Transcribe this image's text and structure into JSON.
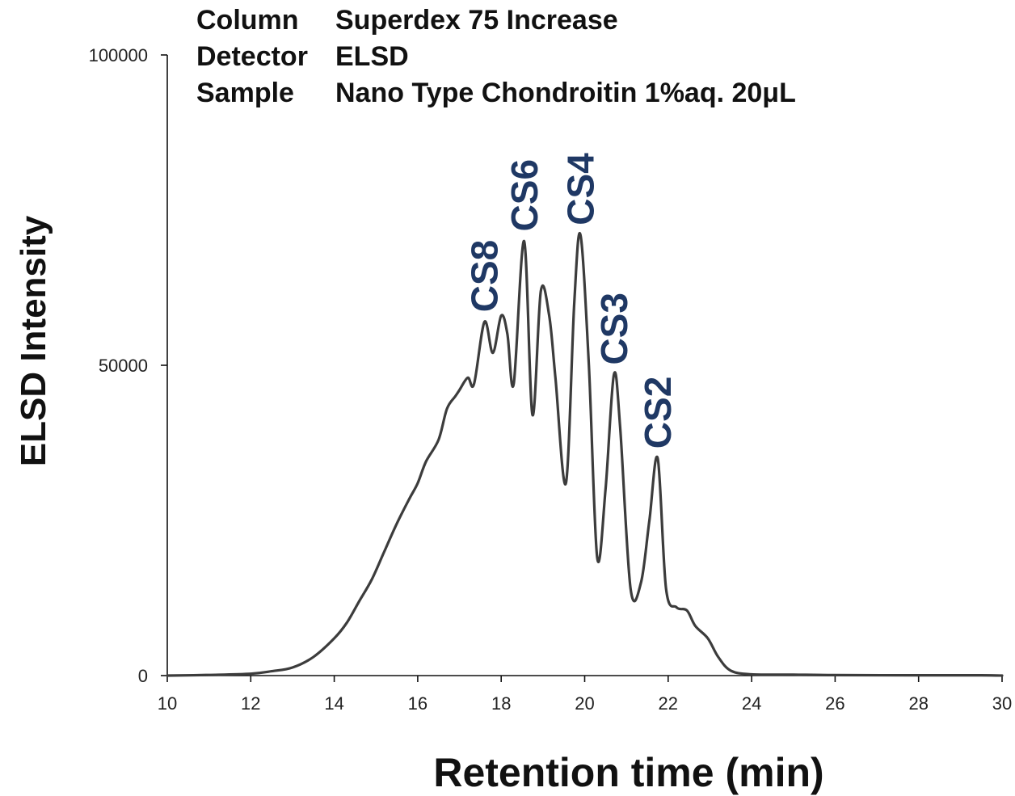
{
  "info": {
    "column_key": "Column",
    "column_val": "Superdex 75 Increase",
    "detector_key": "Detector",
    "detector_val": "ELSD",
    "sample_key": "Sample",
    "sample_val": "Nano Type Chondroitin 1%aq. 20μL"
  },
  "colors": {
    "line": "#3c3c3c",
    "peak_label": "#1f3864",
    "axis": "#111111"
  },
  "chart_data": {
    "type": "line",
    "xlabel": "Retention time (min)",
    "ylabel": "ELSD Intensity",
    "xlim": [
      10,
      30
    ],
    "ylim": [
      0,
      100000
    ],
    "xticks": [
      10,
      12,
      14,
      16,
      18,
      20,
      22,
      24,
      26,
      28,
      30
    ],
    "yticks": [
      0,
      50000,
      100000
    ],
    "grid": false,
    "series": [
      {
        "x": [
          10.0,
          11.0,
          12.0,
          12.5,
          13.0,
          13.5,
          14.0,
          14.3,
          14.6,
          14.9,
          15.2,
          15.5,
          15.8,
          16.0,
          16.2,
          16.5,
          16.7,
          16.9,
          17.0,
          17.2,
          17.35,
          17.6,
          17.8,
          18.0,
          18.15,
          18.3,
          18.55,
          18.75,
          18.95,
          19.15,
          19.3,
          19.55,
          19.75,
          19.9,
          20.1,
          20.3,
          20.5,
          20.7,
          20.85,
          21.1,
          21.35,
          21.55,
          21.75,
          21.95,
          22.2,
          22.45,
          22.65,
          22.95,
          23.2,
          23.5,
          24.0,
          25.0,
          26.0,
          28.0,
          29.5,
          30.0
        ],
        "y": [
          0,
          100,
          300,
          700,
          1300,
          3000,
          6000,
          8500,
          12000,
          15500,
          20000,
          24500,
          28500,
          31000,
          34500,
          38000,
          43000,
          45000,
          46000,
          48000,
          47000,
          57000,
          52000,
          58000,
          55000,
          47000,
          70000,
          42000,
          62000,
          58000,
          48000,
          31000,
          60000,
          71000,
          50000,
          19000,
          30000,
          48500,
          40000,
          14000,
          15000,
          25000,
          35000,
          14000,
          11000,
          10500,
          8000,
          6000,
          3000,
          800,
          200,
          150,
          80,
          50,
          50,
          0
        ]
      }
    ],
    "annotations": [
      {
        "text": "CS8",
        "x": 17.6,
        "y": 57000
      },
      {
        "text": "CS6",
        "x": 18.55,
        "y": 70000
      },
      {
        "text": "CS4",
        "x": 19.9,
        "y": 71000
      },
      {
        "text": "CS3",
        "x": 20.7,
        "y": 48500
      },
      {
        "text": "CS2",
        "x": 21.75,
        "y": 35000
      }
    ]
  }
}
